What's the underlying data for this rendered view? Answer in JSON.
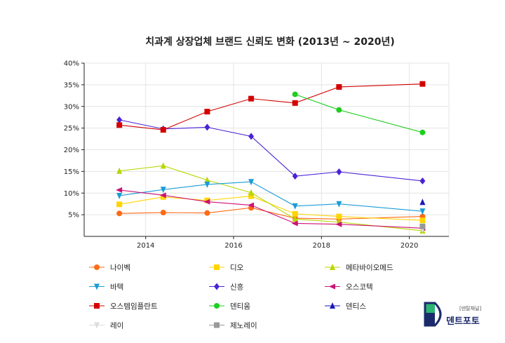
{
  "chart_data": {
    "type": "line",
    "title": "치과계 상장업체 브랜드 신뢰도 변화 (2013년 ~ 2020년)",
    "xlabel": "",
    "ylabel": "",
    "x": [
      2013.4,
      2014.4,
      2015.4,
      2016.4,
      2017.4,
      2018.4,
      2020.3
    ],
    "x_ticks": [
      2014,
      2016,
      2018,
      2020
    ],
    "x_tick_labels": [
      "2014",
      "2016",
      "2018",
      "2020"
    ],
    "xlim": [
      2012.6,
      2020.9
    ],
    "ylim": [
      0,
      40
    ],
    "y_ticks": [
      5,
      10,
      15,
      20,
      25,
      30,
      35,
      40
    ],
    "y_tick_labels": [
      "5%",
      "10%",
      "15%",
      "20%",
      "25%",
      "30%",
      "35%",
      "40%"
    ],
    "grid": true,
    "legend_position": "bottom",
    "series": [
      {
        "name": "나이벡",
        "color": "#ff6a13",
        "marker": "circle",
        "values": [
          5.3,
          5.5,
          5.4,
          6.6,
          4.2,
          4.0,
          4.6
        ]
      },
      {
        "name": "디오",
        "color": "#ffd500",
        "marker": "square",
        "values": [
          7.4,
          9.1,
          8.3,
          9.3,
          5.2,
          4.6,
          3.7
        ]
      },
      {
        "name": "메타바이오메드",
        "color": "#b8d600",
        "marker": "triangle-up",
        "values": [
          15.1,
          16.3,
          13.0,
          10.1,
          4.0,
          3.3,
          1.3
        ]
      },
      {
        "name": "바텍",
        "color": "#199cd6",
        "marker": "triangle-down",
        "values": [
          9.4,
          10.8,
          12.0,
          12.6,
          7.0,
          7.5,
          5.8
        ]
      },
      {
        "name": "신흥",
        "color": "#4a22d6",
        "marker": "diamond",
        "values": [
          26.9,
          24.8,
          25.2,
          23.1,
          13.9,
          14.9,
          12.8
        ]
      },
      {
        "name": "오스코텍",
        "color": "#cc1276",
        "marker": "triangle-left",
        "values": [
          10.7,
          9.5,
          8.0,
          7.2,
          3.0,
          2.8,
          1.9
        ]
      },
      {
        "name": "오스템임플란트",
        "color": "#d40000",
        "marker": "square",
        "values": [
          25.7,
          24.6,
          28.8,
          31.8,
          30.8,
          34.5,
          35.2
        ]
      },
      {
        "name": "덴티움",
        "color": "#1fce1f",
        "marker": "circle",
        "values": [
          null,
          null,
          null,
          null,
          32.8,
          29.2,
          24.0
        ]
      },
      {
        "name": "덴티스",
        "color": "#1a1ab8",
        "marker": "triangle-up",
        "values": [
          null,
          null,
          null,
          null,
          null,
          null,
          7.9
        ]
      },
      {
        "name": "레이",
        "color": "#dddddd",
        "marker": "triangle-down",
        "values": [
          null,
          null,
          null,
          null,
          null,
          null,
          1.6
        ]
      },
      {
        "name": "제노레이",
        "color": "#999999",
        "marker": "square",
        "values": [
          null,
          null,
          null,
          null,
          null,
          null,
          2.3
        ]
      }
    ]
  },
  "branding": {
    "logo_main": "덴트포토",
    "logo_sub": "[덴탈채널]"
  }
}
